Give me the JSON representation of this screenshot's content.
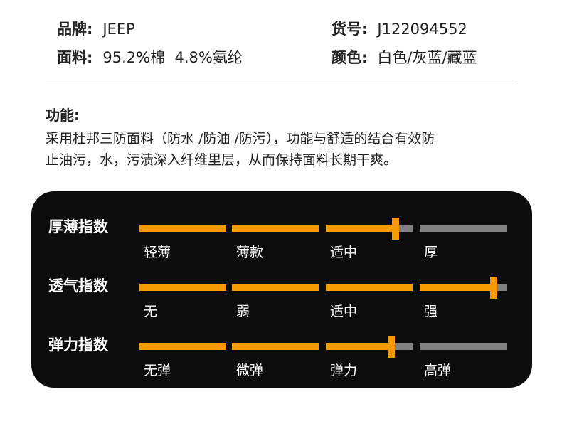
{
  "specs": {
    "brand": {
      "label": "品牌:",
      "value": "JEEP"
    },
    "item_no": {
      "label": "货号:",
      "value": "J122094552"
    },
    "material": {
      "label": "面料:",
      "value": "95.2%棉  4.8%氨纶"
    },
    "color": {
      "label": "颜色:",
      "value": "白色/灰蓝/藏蓝"
    }
  },
  "function": {
    "title": "功能:",
    "line1": "采用杜邦三防面料（防水 /防油 /防污），功能与舒适的结合有效防",
    "line2": "止油污，水，污渍深入纤维里层，从而保持面料长期干爽。"
  },
  "indices": [
    {
      "title": "厚薄指数",
      "levels": [
        "轻薄",
        "薄款",
        "适中",
        "厚"
      ],
      "value": 2.8
    },
    {
      "title": "透气指数",
      "levels": [
        "无",
        "弱",
        "适中",
        "强"
      ],
      "value": 3.85
    },
    {
      "title": "弹力指数",
      "levels": [
        "无弹",
        "微弹",
        "弹力",
        "高弹"
      ],
      "value": 2.75
    }
  ],
  "colors": {
    "accent": "#f59a00",
    "track": "#808080",
    "panel": "#0d0d0d"
  }
}
